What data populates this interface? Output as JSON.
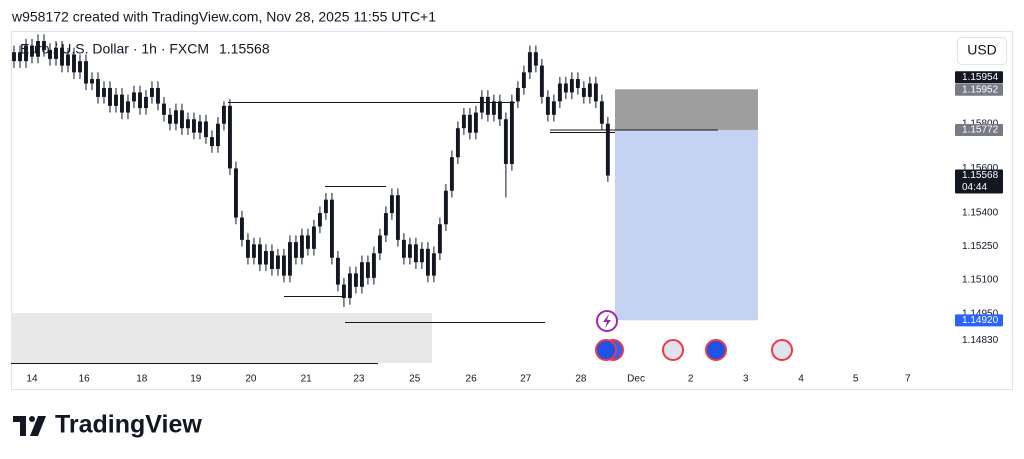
{
  "header": "w958172 created with TradingView.com, Nov 28, 2025 11:55 UTC+1",
  "brand": "TradingView",
  "currency_button": "USD",
  "chart_data": {
    "type": "candlestick",
    "title": "Euro / U.S. Dollar · 1h · FXCM",
    "color": "#131722",
    "open": [
      1.1608,
      1.1612,
      1.1608,
      1.1615,
      1.161,
      1.1617,
      1.1613,
      1.1609,
      1.1614,
      1.1606,
      1.1611,
      1.1603,
      1.1608,
      1.1598,
      1.16,
      1.1592,
      1.1596,
      1.1588,
      1.1593,
      1.1585,
      1.159,
      1.1594,
      1.1587,
      1.1592,
      1.1596,
      1.1589,
      1.1584,
      1.158,
      1.1586,
      1.1578,
      1.1582,
      1.1576,
      1.1581,
      1.1574,
      1.157,
      1.158,
      1.1588,
      1.156,
      1.1538,
      1.1528,
      1.152,
      1.1526,
      1.1517,
      1.1523,
      1.1515,
      1.1521,
      1.1512,
      1.1527,
      1.152,
      1.153,
      1.1524,
      1.1534,
      1.154,
      1.1546,
      1.152,
      1.1508,
      1.1502,
      1.1513,
      1.1507,
      1.1518,
      1.1511,
      1.1522,
      1.153,
      1.154,
      1.1548,
      1.1528,
      1.152,
      1.1526,
      1.1518,
      1.1524,
      1.1512,
      1.1522,
      1.1535,
      1.155,
      1.1565,
      1.1578,
      1.1584,
      1.1576,
      1.1585,
      1.1592,
      1.1584,
      1.159,
      1.1582,
      1.1562,
      1.159,
      1.1596,
      1.1603,
      1.1612,
      1.1606,
      1.1592,
      1.1584,
      1.159,
      1.1598,
      1.1594,
      1.16,
      1.1596,
      1.1592,
      1.1598,
      1.159,
      1.158
    ],
    "high": [
      1.1615,
      1.1615,
      1.1618,
      1.1618,
      1.162,
      1.162,
      1.1616,
      1.1617,
      1.1617,
      1.1614,
      1.1614,
      1.1611,
      1.1611,
      1.1603,
      1.1603,
      1.1599,
      1.1599,
      1.1596,
      1.1596,
      1.1593,
      1.1597,
      1.1597,
      1.1595,
      1.1599,
      1.1599,
      1.1592,
      1.1587,
      1.1589,
      1.1589,
      1.1585,
      1.1585,
      1.1584,
      1.1584,
      1.1577,
      1.1583,
      1.159,
      1.1591,
      1.1563,
      1.1541,
      1.1531,
      1.1529,
      1.1529,
      1.1526,
      1.1526,
      1.1524,
      1.1524,
      1.153,
      1.153,
      1.1533,
      1.1533,
      1.1537,
      1.1543,
      1.1549,
      1.1549,
      1.1523,
      1.1511,
      1.1516,
      1.1516,
      1.1521,
      1.1521,
      1.1525,
      1.1533,
      1.1543,
      1.1551,
      1.1551,
      1.1531,
      1.1529,
      1.1529,
      1.1527,
      1.1527,
      1.1525,
      1.1538,
      1.1553,
      1.1568,
      1.1581,
      1.1587,
      1.1587,
      1.1588,
      1.1595,
      1.1595,
      1.1593,
      1.1593,
      1.1585,
      1.1593,
      1.1599,
      1.1606,
      1.1615,
      1.1615,
      1.1609,
      1.1595,
      1.1593,
      1.1601,
      1.1601,
      1.1603,
      1.1603,
      1.1599,
      1.1601,
      1.1601,
      1.1593,
      1.1583
    ],
    "low": [
      1.1605,
      1.1605,
      1.1605,
      1.1607,
      1.1607,
      1.161,
      1.1606,
      1.1606,
      1.1603,
      1.1603,
      1.16,
      1.16,
      1.1595,
      1.1595,
      1.1589,
      1.1589,
      1.1585,
      1.1585,
      1.1582,
      1.1582,
      1.1587,
      1.1584,
      1.1584,
      1.1589,
      1.1586,
      1.1581,
      1.1577,
      1.1577,
      1.1575,
      1.1575,
      1.1573,
      1.1573,
      1.1571,
      1.1567,
      1.1567,
      1.1577,
      1.1557,
      1.1535,
      1.1525,
      1.1517,
      1.1517,
      1.1514,
      1.1514,
      1.1512,
      1.1512,
      1.1509,
      1.1509,
      1.1517,
      1.1517,
      1.1521,
      1.1521,
      1.1531,
      1.1537,
      1.1517,
      1.1505,
      1.1498,
      1.1499,
      1.1504,
      1.1504,
      1.1508,
      1.1508,
      1.1519,
      1.1527,
      1.1537,
      1.1525,
      1.1517,
      1.1517,
      1.1515,
      1.1515,
      1.1509,
      1.1509,
      1.1519,
      1.1532,
      1.1547,
      1.1562,
      1.1575,
      1.1573,
      1.1573,
      1.1582,
      1.1581,
      1.1581,
      1.1579,
      1.1547,
      1.1559,
      1.1587,
      1.1593,
      1.16,
      1.1603,
      1.1589,
      1.1581,
      1.1581,
      1.1587,
      1.1591,
      1.1591,
      1.1593,
      1.1589,
      1.1589,
      1.1587,
      1.1577,
      1.1554
    ],
    "close": [
      1.1612,
      1.1608,
      1.1615,
      1.161,
      1.1617,
      1.1613,
      1.1609,
      1.1614,
      1.1606,
      1.1611,
      1.1603,
      1.1608,
      1.1598,
      1.16,
      1.1592,
      1.1596,
      1.1588,
      1.1593,
      1.1585,
      1.159,
      1.1594,
      1.1587,
      1.1592,
      1.1596,
      1.1589,
      1.1584,
      1.158,
      1.1586,
      1.1578,
      1.1582,
      1.1576,
      1.1581,
      1.1574,
      1.157,
      1.158,
      1.1588,
      1.156,
      1.1538,
      1.1528,
      1.152,
      1.1526,
      1.1517,
      1.1523,
      1.1515,
      1.1521,
      1.1512,
      1.1527,
      1.152,
      1.153,
      1.1524,
      1.1534,
      1.154,
      1.1546,
      1.152,
      1.1508,
      1.1502,
      1.1513,
      1.1507,
      1.1518,
      1.1511,
      1.1522,
      1.153,
      1.154,
      1.1548,
      1.1528,
      1.152,
      1.1526,
      1.1518,
      1.1524,
      1.1512,
      1.1522,
      1.1535,
      1.155,
      1.1565,
      1.1578,
      1.1584,
      1.1576,
      1.1585,
      1.1592,
      1.1584,
      1.159,
      1.1582,
      1.1562,
      1.159,
      1.1596,
      1.1603,
      1.1612,
      1.1606,
      1.1592,
      1.1584,
      1.159,
      1.1598,
      1.1594,
      1.16,
      1.1596,
      1.1592,
      1.1598,
      1.159,
      1.158,
      1.15568
    ],
    "xlim": [
      0,
      155.7
    ],
    "xticks": [
      {
        "value": 3.5,
        "label": "14"
      },
      {
        "value": 12.2,
        "label": "16"
      },
      {
        "value": 21.8,
        "label": "18"
      },
      {
        "value": 30.8,
        "label": "19"
      },
      {
        "value": 40,
        "label": "20"
      },
      {
        "value": 49.2,
        "label": "21"
      },
      {
        "value": 58,
        "label": "23"
      },
      {
        "value": 67.3,
        "label": "25"
      },
      {
        "value": 76.7,
        "label": "26"
      },
      {
        "value": 85.8,
        "label": "27"
      },
      {
        "value": 95,
        "label": "28"
      },
      {
        "value": 104.2,
        "label": "Dec"
      },
      {
        "value": 113.3,
        "label": "2"
      },
      {
        "value": 122.5,
        "label": "3"
      },
      {
        "value": 131.7,
        "label": "4"
      },
      {
        "value": 140.8,
        "label": "5"
      },
      {
        "value": 149.5,
        "label": "7"
      }
    ],
    "ylim": [
      1.1472,
      1.16215
    ],
    "yticks": [
      {
        "value": 1.1483,
        "label": "1.14830"
      },
      {
        "value": 1.1495,
        "label": "1.14950"
      },
      {
        "value": 1.151,
        "label": "1.15100"
      },
      {
        "value": 1.1525,
        "label": "1.15250"
      },
      {
        "value": 1.154,
        "label": "1.15400"
      },
      {
        "value": 1.156,
        "label": "1.15600"
      },
      {
        "value": 1.158,
        "label": "1.15800"
      }
    ],
    "grid": false,
    "price_tags": [
      {
        "value": 1.15954,
        "color": "#131722"
      },
      {
        "value": 1.15952,
        "color": "#787b86"
      },
      {
        "value": 1.15772,
        "color": "#787b86"
      },
      {
        "value": 1.15568,
        "color": "#131722",
        "countdown": "04:44"
      },
      {
        "value": 1.1492,
        "label": "1.14920",
        "color": "#2962ff"
      }
    ]
  }
}
